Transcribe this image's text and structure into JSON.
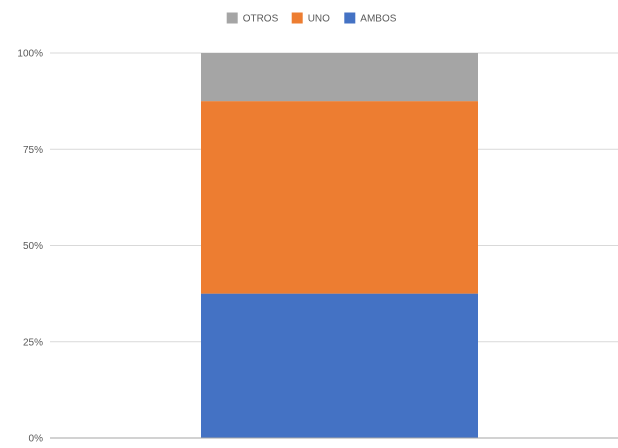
{
  "chart_data": {
    "type": "bar",
    "stacked": true,
    "normalized": true,
    "categories": [
      ""
    ],
    "series": [
      {
        "name": "AMBOS",
        "values": [
          37.5
        ],
        "color": "#4472c4"
      },
      {
        "name": "UNO",
        "values": [
          50
        ],
        "color": "#ed7d31"
      },
      {
        "name": "OTROS",
        "values": [
          12.5
        ],
        "color": "#a5a5a5"
      }
    ],
    "ylim": [
      0,
      100
    ],
    "y_ticks": [
      0,
      25,
      50,
      75,
      100
    ],
    "y_tick_labels": [
      "0%",
      "25%",
      "50%",
      "75%",
      "100%"
    ],
    "legend_order": [
      "OTROS",
      "UNO",
      "AMBOS"
    ],
    "legend_position": "top",
    "grid": true
  }
}
